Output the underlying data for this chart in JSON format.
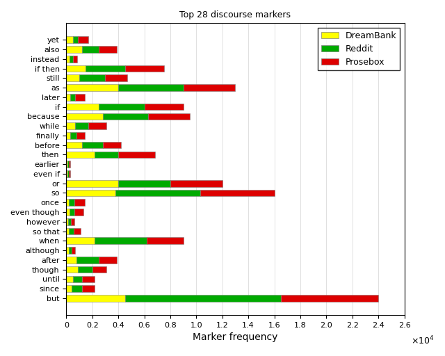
{
  "title": "Top 28 discourse markers",
  "xlabel": "Marker frequency",
  "xlim": [
    0,
    26000
  ],
  "categories": [
    "yet",
    "also",
    "instead",
    "if then",
    "still",
    "as",
    "later",
    "if",
    "because",
    "while",
    "finally",
    "before",
    "then",
    "earlier",
    "even if",
    "or",
    "so",
    "once",
    "even though",
    "however",
    "so that",
    "when",
    "although",
    "after",
    "though",
    "until",
    "since",
    "but"
  ],
  "dreambank": [
    500,
    1200,
    250,
    1500,
    1000,
    4000,
    300,
    2500,
    2800,
    700,
    300,
    1200,
    2200,
    100,
    100,
    4000,
    3800,
    200,
    250,
    150,
    200,
    2200,
    200,
    800,
    900,
    500,
    400,
    4500
  ],
  "reddit": [
    400,
    1300,
    250,
    3000,
    2000,
    5000,
    400,
    3500,
    3500,
    1000,
    500,
    1600,
    1800,
    100,
    100,
    4000,
    6500,
    400,
    350,
    200,
    350,
    4000,
    200,
    1700,
    1100,
    700,
    800,
    12000
  ],
  "prosebox": [
    800,
    1400,
    350,
    3000,
    1700,
    4000,
    750,
    3000,
    3200,
    1400,
    600,
    1400,
    2800,
    100,
    100,
    4000,
    5700,
    850,
    700,
    250,
    550,
    2800,
    250,
    1400,
    1100,
    1000,
    1000,
    7500
  ],
  "color_dreambank": "#ffff00",
  "color_reddit": "#00aa00",
  "color_prosebox": "#dd0000",
  "bar_height": 0.7,
  "background_color": "#ffffff",
  "legend_dreambank": "DreamBank",
  "legend_reddit": "Reddit",
  "legend_prosebox": "Prosebox"
}
